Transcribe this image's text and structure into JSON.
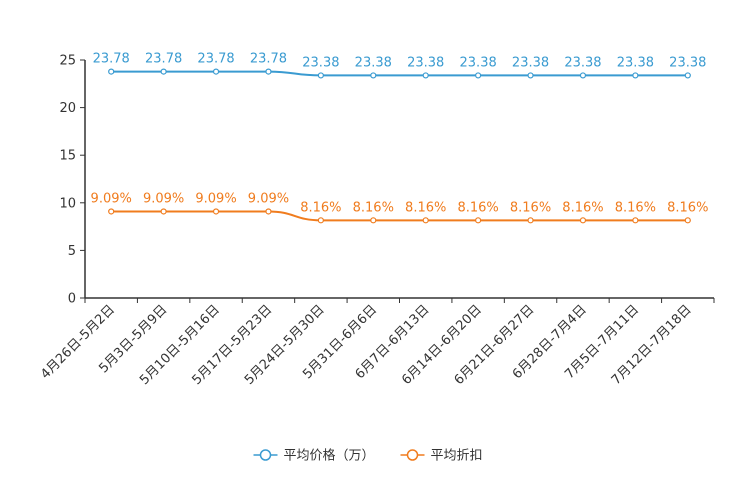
{
  "chart_data": {
    "type": "line",
    "title": "",
    "xlabel": "",
    "ylabel": "",
    "ylim": [
      0,
      25
    ],
    "yticks": [
      0,
      5,
      10,
      15,
      20,
      25
    ],
    "categories": [
      "4月26日-5月2日",
      "5月3日-5月9日",
      "5月10日-5月16日",
      "5月17日-5月23日",
      "5月24日-5月30日",
      "5月31日-6月6日",
      "6月7日-6月13日",
      "6月14日-6月20日",
      "6月21日-6月27日",
      "6月28日-7月4日",
      "7月5日-7月11日",
      "7月12日-7月18日"
    ],
    "series": [
      {
        "name": "平均价格（万）",
        "color": "#3a9bd1",
        "values": [
          23.78,
          23.78,
          23.78,
          23.78,
          23.38,
          23.38,
          23.38,
          23.38,
          23.38,
          23.38,
          23.38,
          23.38
        ],
        "labels": [
          "23.78",
          "23.78",
          "23.78",
          "23.78",
          "23.38",
          "23.38",
          "23.38",
          "23.38",
          "23.38",
          "23.38",
          "23.38",
          "23.38"
        ]
      },
      {
        "name": "平均折扣",
        "color": "#f07c1e",
        "values": [
          9.09,
          9.09,
          9.09,
          9.09,
          8.16,
          8.16,
          8.16,
          8.16,
          8.16,
          8.16,
          8.16,
          8.16
        ],
        "labels": [
          "9.09%",
          "9.09%",
          "9.09%",
          "9.09%",
          "8.16%",
          "8.16%",
          "8.16%",
          "8.16%",
          "8.16%",
          "8.16%",
          "8.16%",
          "8.16%"
        ]
      }
    ],
    "legend_position": "bottom-center",
    "grid": false
  }
}
